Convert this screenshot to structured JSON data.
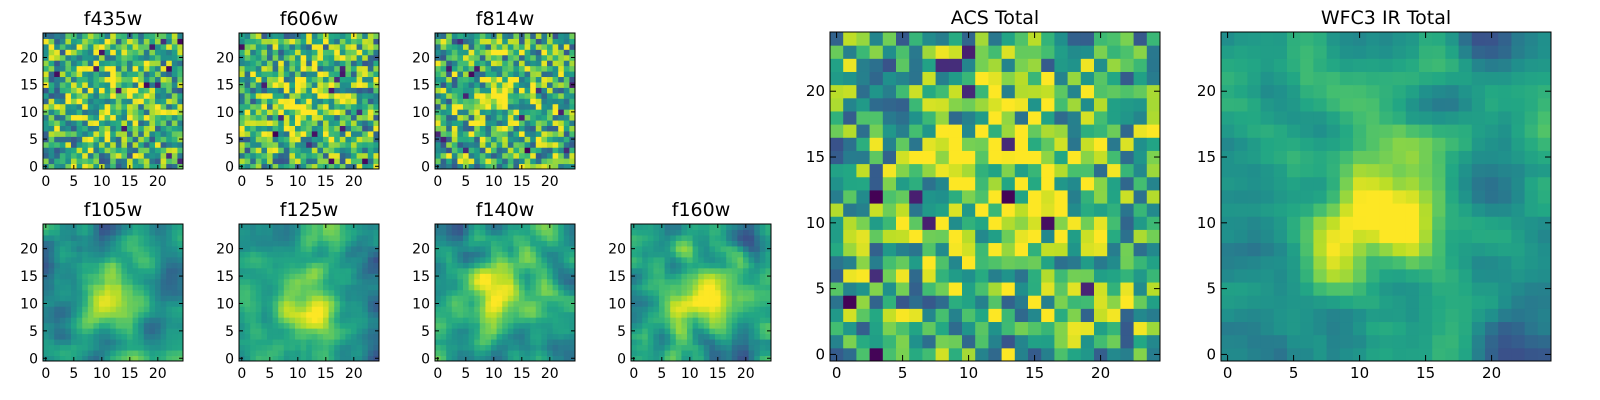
{
  "chart_data": {
    "type": "heatmap",
    "colormap": "viridis",
    "grid": false,
    "panels": [
      {
        "id": "f435w",
        "title": "f435w",
        "shape": [
          25,
          25
        ],
        "xlim": [
          -0.5,
          24.5
        ],
        "ylim": [
          -0.5,
          24.5
        ],
        "xticks": [
          0,
          5,
          10,
          15,
          20
        ],
        "yticks": [
          0,
          5,
          10,
          15,
          20
        ],
        "texture": "noisy",
        "peak_center": [
          12,
          14
        ],
        "peak_width": 6.0,
        "peak_amp": 0.15
      },
      {
        "id": "f606w",
        "title": "f606w",
        "shape": [
          25,
          25
        ],
        "xlim": [
          -0.5,
          24.5
        ],
        "ylim": [
          -0.5,
          24.5
        ],
        "xticks": [
          0,
          5,
          10,
          15,
          20
        ],
        "yticks": [
          0,
          5,
          10,
          15,
          20
        ],
        "texture": "noisy",
        "peak_center": [
          12,
          12
        ],
        "peak_width": 5.0,
        "peak_amp": 0.2
      },
      {
        "id": "f814w",
        "title": "f814w",
        "shape": [
          25,
          25
        ],
        "xlim": [
          -0.5,
          24.5
        ],
        "ylim": [
          -0.5,
          24.5
        ],
        "xticks": [
          0,
          5,
          10,
          15,
          20
        ],
        "yticks": [
          0,
          5,
          10,
          15,
          20
        ],
        "texture": "noisy",
        "peak_center": [
          12,
          13
        ],
        "peak_width": 5.0,
        "peak_amp": 0.15
      },
      {
        "id": "f105w",
        "title": "f105w",
        "shape": [
          25,
          25
        ],
        "xlim": [
          -0.5,
          24.5
        ],
        "ylim": [
          -0.5,
          24.5
        ],
        "xticks": [
          0,
          5,
          10,
          15,
          20
        ],
        "yticks": [
          0,
          5,
          10,
          15,
          20
        ],
        "texture": "smooth",
        "peak_center": [
          12,
          11
        ],
        "peak_width": 4.0,
        "peak_amp": 0.45
      },
      {
        "id": "f125w",
        "title": "f125w",
        "shape": [
          25,
          25
        ],
        "xlim": [
          -0.5,
          24.5
        ],
        "ylim": [
          -0.5,
          24.5
        ],
        "xticks": [
          0,
          5,
          10,
          15,
          20
        ],
        "yticks": [
          0,
          5,
          10,
          15,
          20
        ],
        "texture": "smooth",
        "peak_center": [
          12,
          11
        ],
        "peak_width": 5.0,
        "peak_amp": 0.35
      },
      {
        "id": "f140w",
        "title": "f140w",
        "shape": [
          25,
          25
        ],
        "xlim": [
          -0.5,
          24.5
        ],
        "ylim": [
          -0.5,
          24.5
        ],
        "xticks": [
          0,
          5,
          10,
          15,
          20
        ],
        "yticks": [
          0,
          5,
          10,
          15,
          20
        ],
        "texture": "smooth",
        "peak_center": [
          11,
          13
        ],
        "peak_width": 5.0,
        "peak_amp": 0.35
      },
      {
        "id": "f160w",
        "title": "f160w",
        "shape": [
          25,
          25
        ],
        "xlim": [
          -0.5,
          24.5
        ],
        "ylim": [
          -0.5,
          24.5
        ],
        "xticks": [
          0,
          5,
          10,
          15,
          20
        ],
        "yticks": [
          0,
          5,
          10,
          15,
          20
        ],
        "texture": "smooth",
        "peak_center": [
          12,
          12
        ],
        "peak_width": 4.0,
        "peak_amp": 0.4
      },
      {
        "id": "acs_total",
        "title": "ACS Total",
        "shape": [
          25,
          25
        ],
        "xlim": [
          -0.5,
          24.5
        ],
        "ylim": [
          -0.5,
          24.5
        ],
        "xticks": [
          0,
          5,
          10,
          15,
          20
        ],
        "yticks": [
          0,
          5,
          10,
          15,
          20
        ],
        "texture": "noisy",
        "peak_center": [
          13,
          12
        ],
        "peak_width": 4.5,
        "peak_amp": 0.3
      },
      {
        "id": "wfc3_ir_total",
        "title": "WFC3 IR Total",
        "shape": [
          25,
          25
        ],
        "xlim": [
          -0.5,
          24.5
        ],
        "ylim": [
          -0.5,
          24.5
        ],
        "xticks": [
          0,
          5,
          10,
          15,
          20
        ],
        "yticks": [
          0,
          5,
          10,
          15,
          20
        ],
        "texture": "smooth",
        "peak_center": [
          12,
          11
        ],
        "peak_width": 3.5,
        "peak_amp": 0.55
      }
    ]
  }
}
